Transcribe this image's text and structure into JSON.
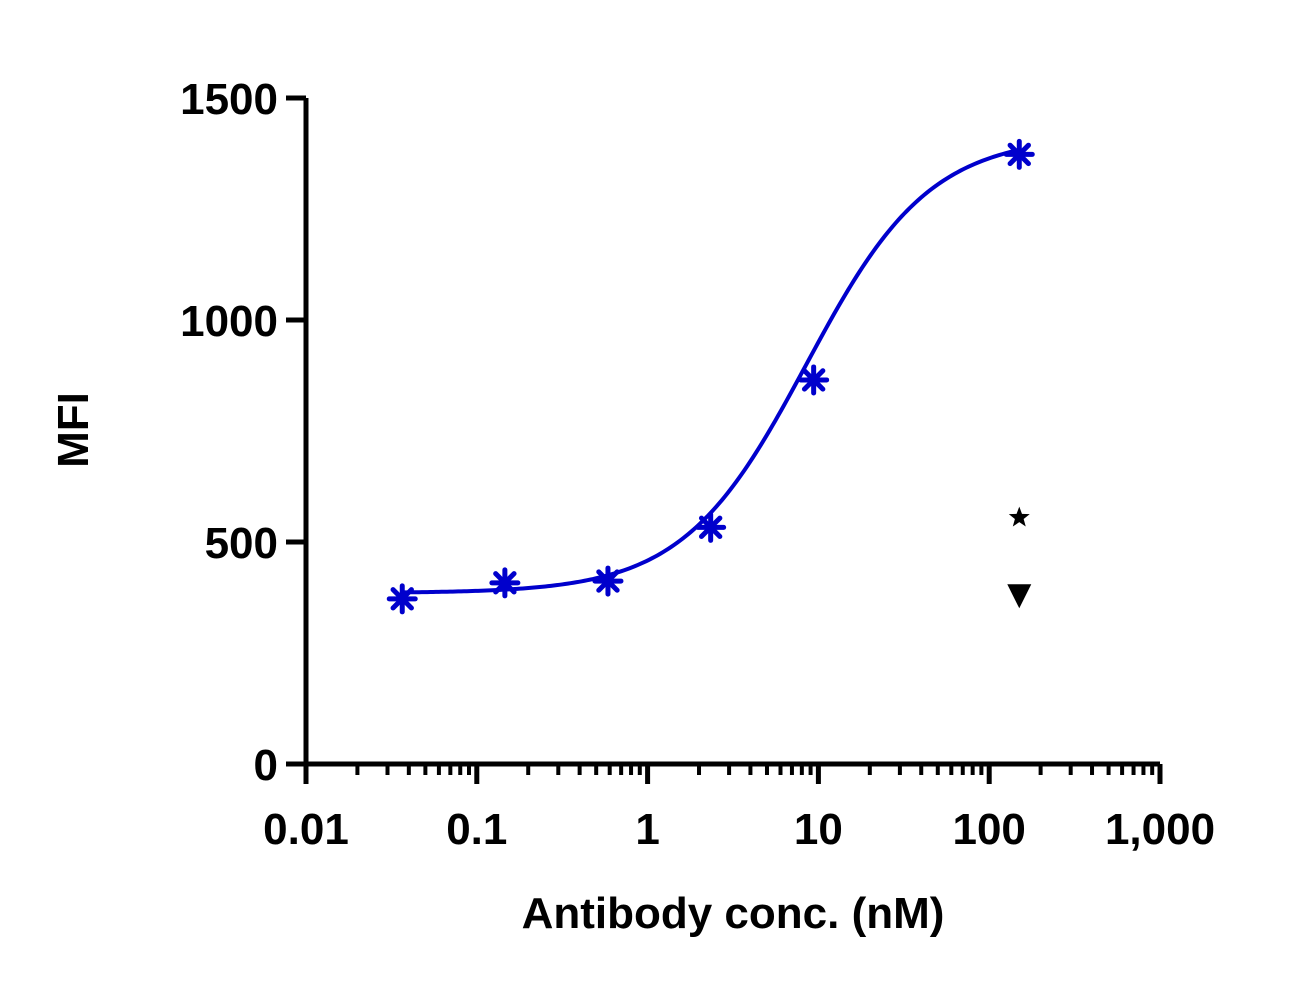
{
  "chart_data": {
    "type": "scatter",
    "title": "",
    "xlabel": "Antibody conc. (nM)",
    "ylabel": "MFI",
    "x_scale": "log",
    "xlim": [
      0.01,
      1000
    ],
    "ylim": [
      0,
      1500
    ],
    "x_ticks": [
      0.01,
      0.1,
      1,
      10,
      100,
      1000
    ],
    "x_tick_labels": [
      "0.01",
      "0.1",
      "1",
      "10",
      "100",
      "1,000"
    ],
    "y_ticks": [
      0,
      500,
      1000,
      1500
    ],
    "y_tick_labels": [
      "0",
      "500",
      "1000",
      "1500"
    ],
    "grid": false,
    "series": [
      {
        "marker": "asterisk",
        "color": "#0000cc",
        "x": [
          0.0366,
          0.146,
          0.586,
          2.34,
          9.38,
          150
        ],
        "y": [
          372,
          408,
          412,
          533,
          865,
          1373
        ],
        "fit": "sigmoidal",
        "fit_params": {
          "bottom": 385,
          "top": 1415,
          "ec50": 8.5,
          "hill": 1.2
        }
      },
      {
        "marker": "star",
        "color": "#000000",
        "x": [
          150
        ],
        "y": [
          555
        ]
      },
      {
        "marker": "triangle-down",
        "color": "#000000",
        "x": [
          150
        ],
        "y": [
          380
        ]
      }
    ]
  }
}
